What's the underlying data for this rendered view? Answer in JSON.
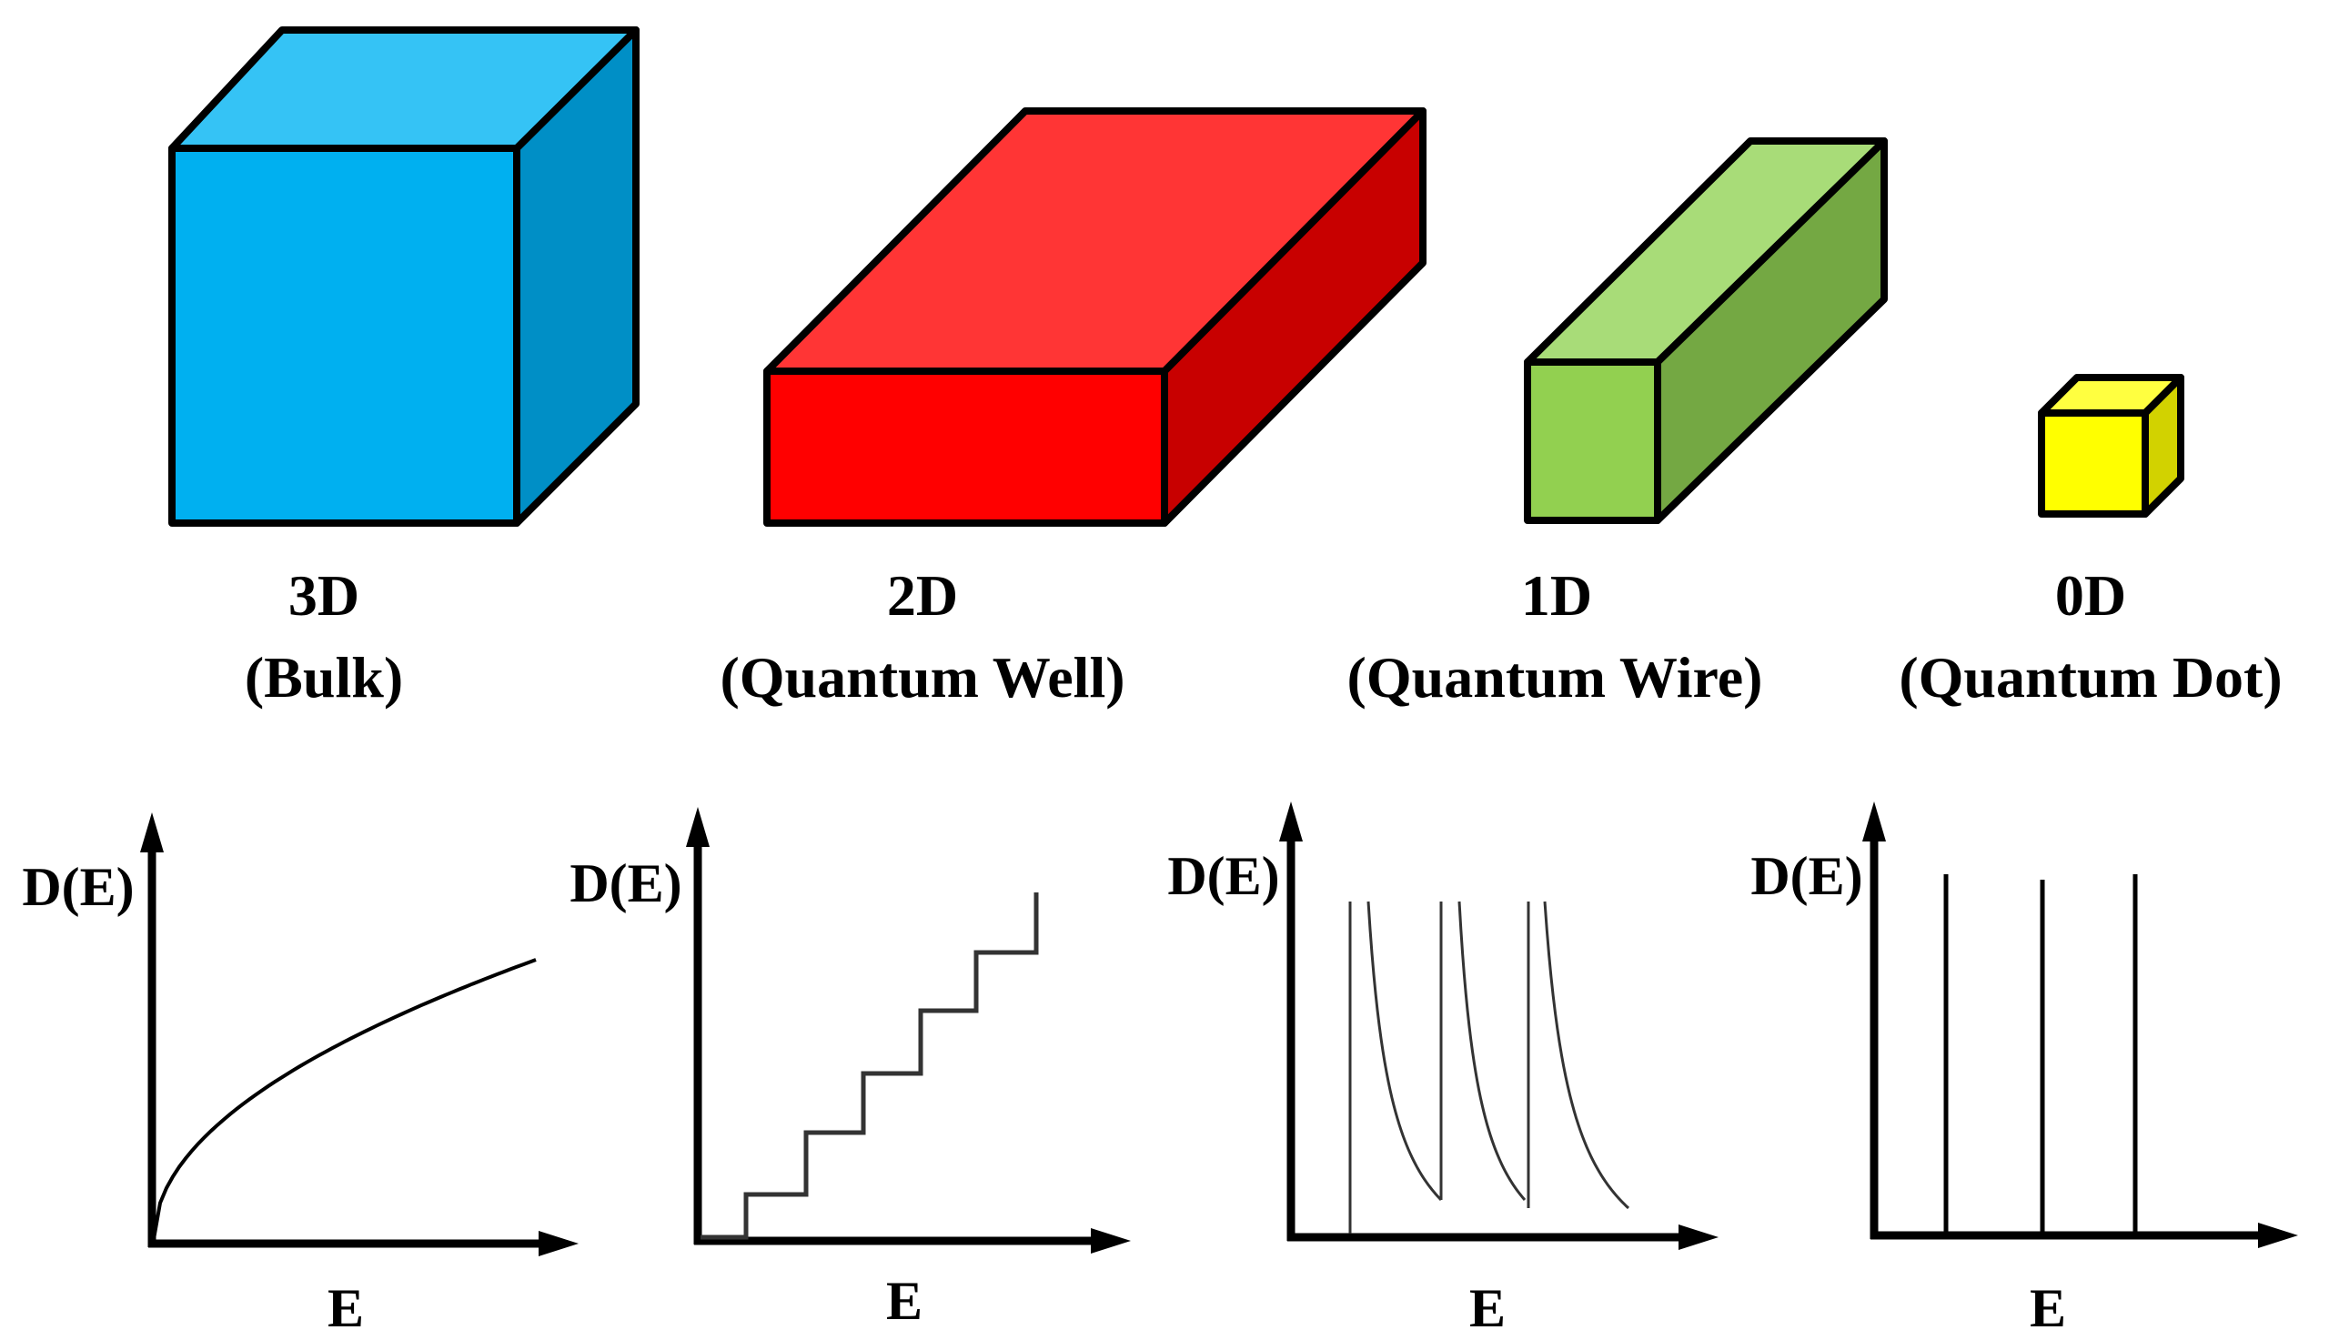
{
  "structures": [
    {
      "dim": "3D",
      "name": "(Bulk)",
      "colors": {
        "front": "#00b0f0",
        "top": "#35c3f5",
        "side": "#008fc6"
      }
    },
    {
      "dim": "2D",
      "name": "(Quantum Well)",
      "colors": {
        "front": "#ff0000",
        "top": "#ff3535",
        "side": "#c80000"
      }
    },
    {
      "dim": "1D",
      "name": "(Quantum Wire)",
      "colors": {
        "front": "#92d050",
        "top": "#a8dc78",
        "side": "#74a843"
      }
    },
    {
      "dim": "0D",
      "name": "(Quantum Dot)",
      "colors": {
        "front": "#ffff00",
        "top": "#ffff40",
        "side": "#d2d200"
      }
    }
  ],
  "plots": [
    {
      "ylabel": "D(E)",
      "xlabel": "E"
    },
    {
      "ylabel": "D(E)",
      "xlabel": "E"
    },
    {
      "ylabel": "D(E)",
      "xlabel": "E"
    },
    {
      "ylabel": "D(E)",
      "xlabel": "E"
    }
  ]
}
